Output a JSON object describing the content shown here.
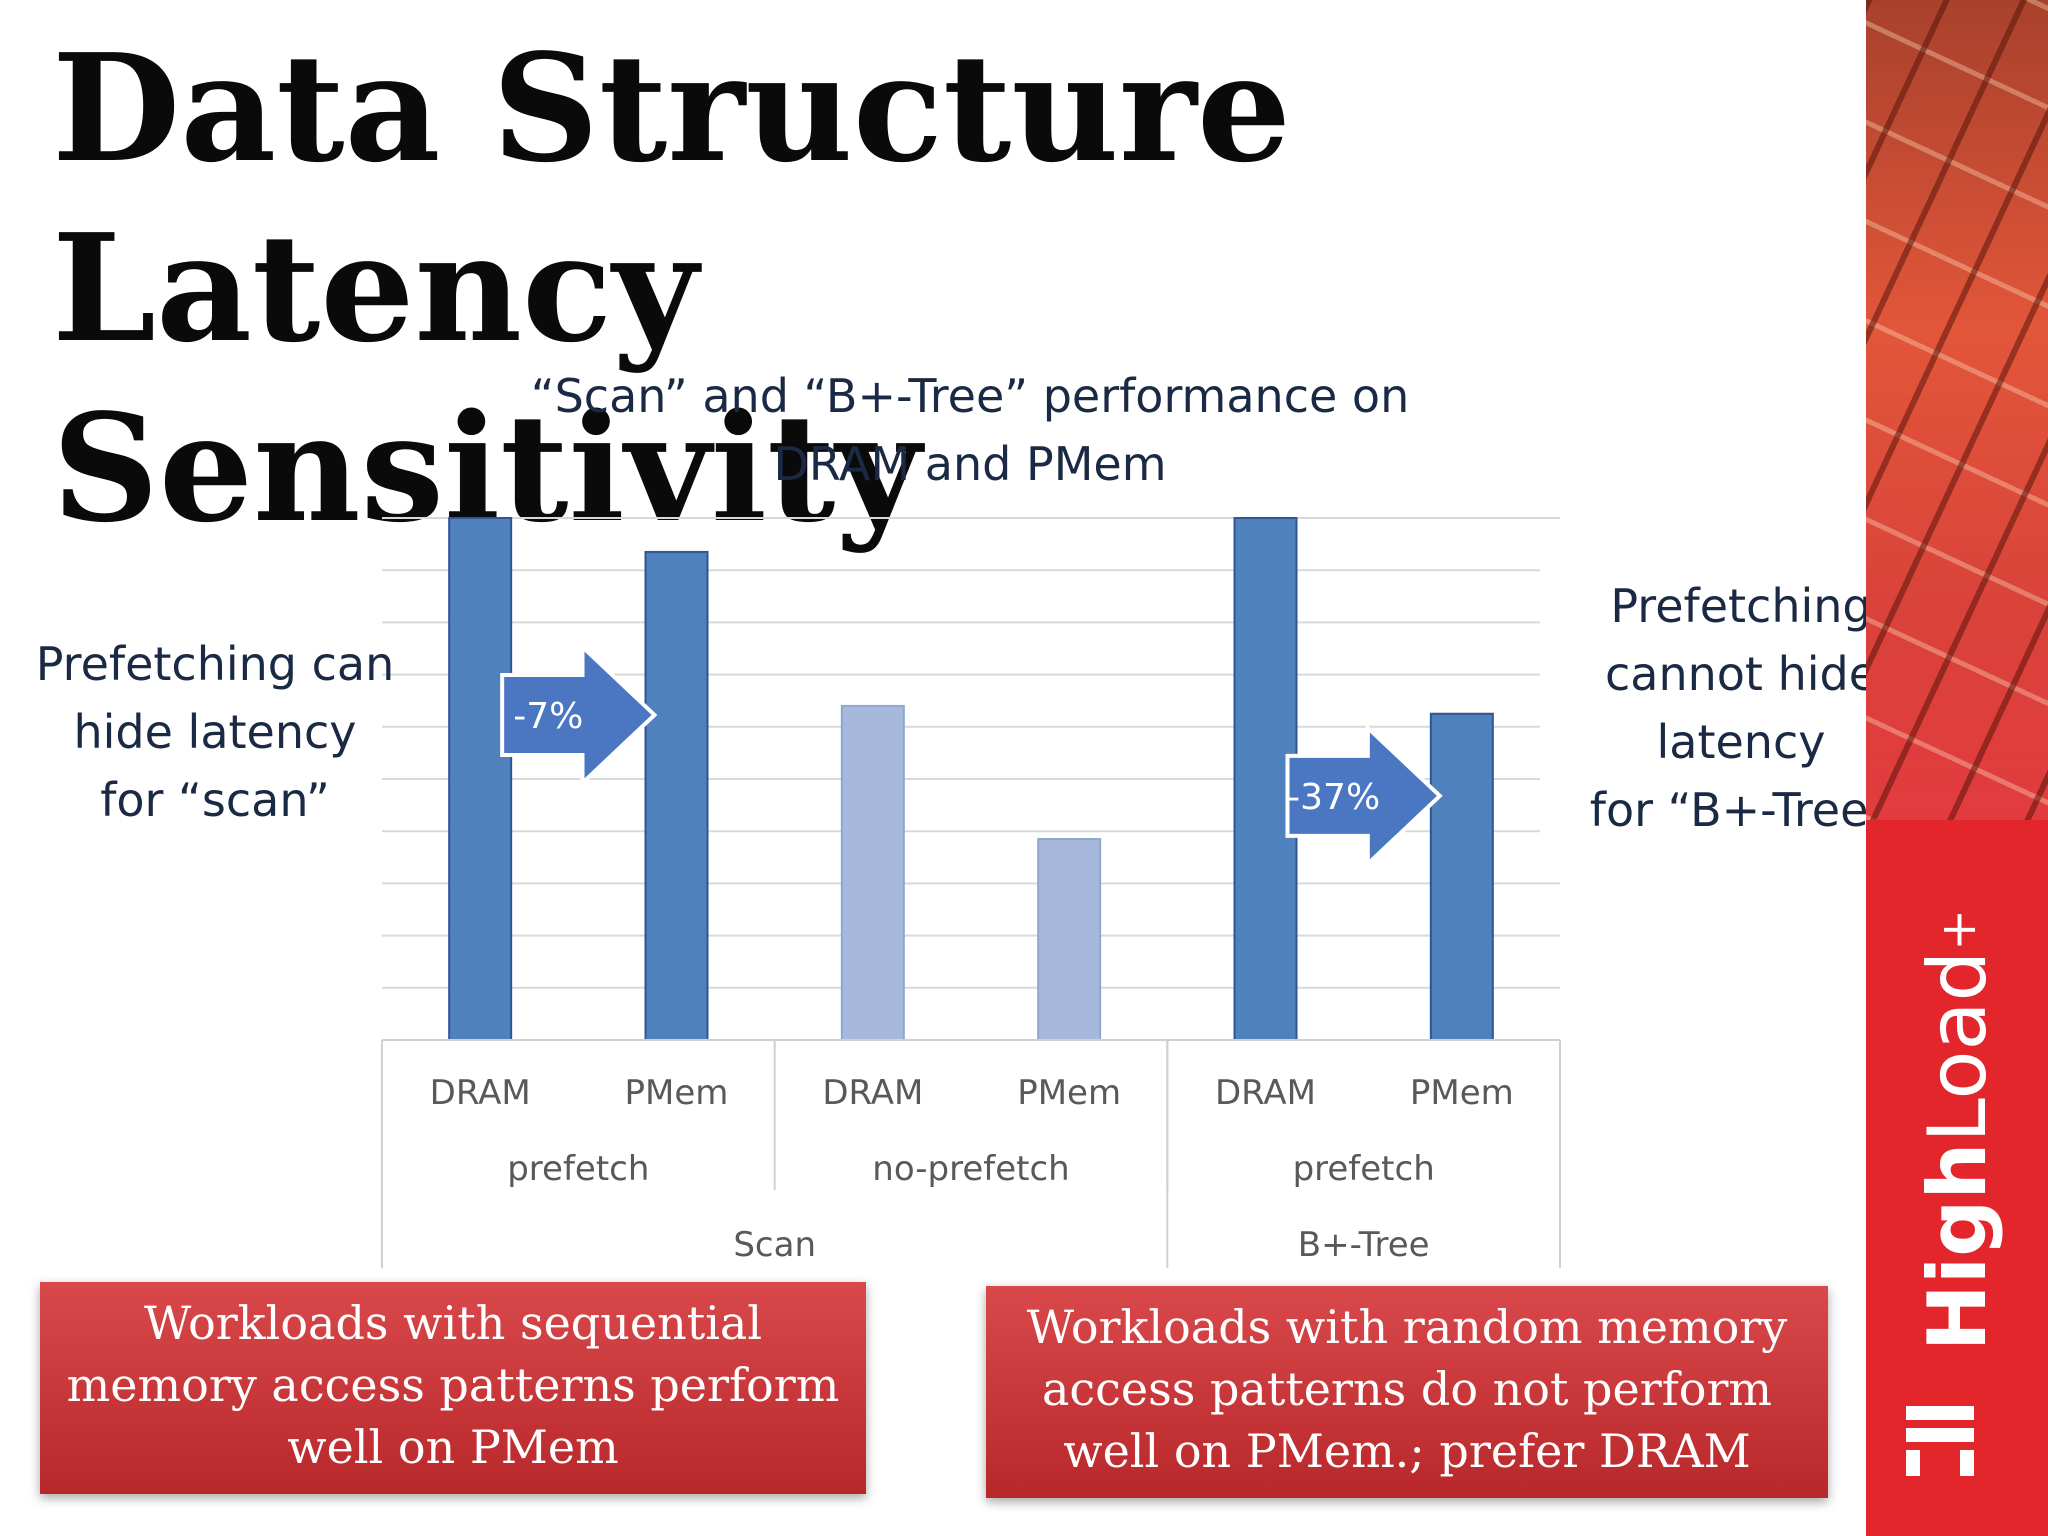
{
  "slide": {
    "title_line1": "Data Structure Latency",
    "title_line2": "Sensitivity"
  },
  "annotations": {
    "left": [
      "Prefetching can",
      "hide latency",
      "for “scan”"
    ],
    "right": [
      "Prefetching",
      "cannot hide",
      "latency",
      "for “B+-Tree”"
    ]
  },
  "callouts": {
    "left": [
      "Workloads with sequential",
      "memory access patterns perform",
      "well on PMem"
    ],
    "right": [
      "Workloads with random memory",
      "access patterns do not perform",
      "well on PMem.; prefer DRAM"
    ]
  },
  "brand": {
    "name_bold": "High",
    "name_regular": "Load",
    "plus": "+"
  },
  "colors": {
    "bar_dark": "#4f81bd",
    "bar_light": "#a6b8dc",
    "arrow": "#4a76c2",
    "brand_red": "#e2262c"
  },
  "chart_data": {
    "type": "bar",
    "title_lines": [
      "“Scan” and “B+-Tree” performance on",
      "DRAM and PMem"
    ],
    "categories": [
      "DRAM",
      "PMem",
      "DRAM",
      "PMem",
      "DRAM",
      "PMem"
    ],
    "groups_level2": [
      {
        "label": "prefetch",
        "span": 2
      },
      {
        "label": "no-prefetch",
        "span": 2
      },
      {
        "label": "prefetch",
        "span": 2
      }
    ],
    "groups_level1": [
      {
        "label": "Scan",
        "span": 4
      },
      {
        "label": "B+-Tree",
        "span": 2
      }
    ],
    "values": [
      10,
      9.35,
      6.4,
      3.85,
      10,
      6.25
    ],
    "bar_shade": [
      "dark",
      "dark",
      "light",
      "light",
      "dark",
      "dark"
    ],
    "ylim": [
      0,
      10
    ],
    "gridlines": 10,
    "y_tick_labels": false,
    "legend": "none",
    "arrows": [
      {
        "label": "-7%",
        "from": 0,
        "to": 1
      },
      {
        "label": "-37%",
        "from": 4,
        "to": 5
      }
    ]
  }
}
